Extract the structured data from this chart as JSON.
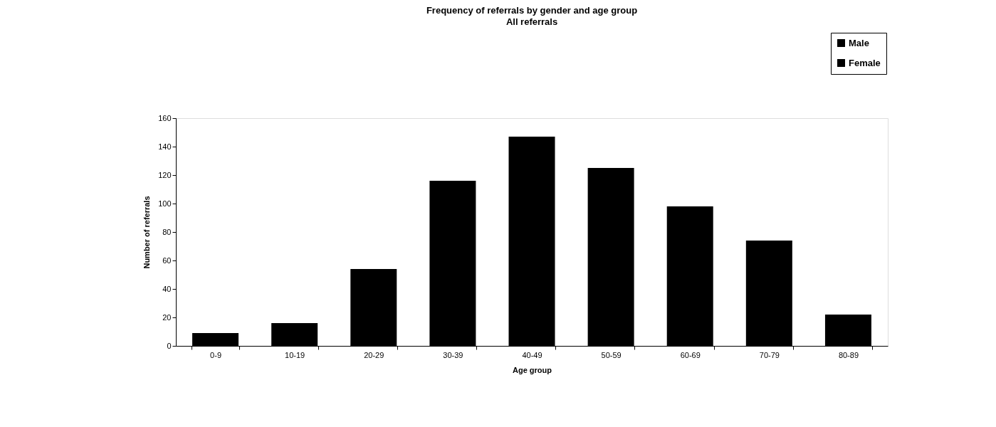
{
  "chart_data": {
    "type": "bar",
    "title": "Frequency of referrals by gender and age group",
    "subtitle": "All referrals",
    "xlabel": "Age group",
    "ylabel": "Number of referrals",
    "categories": [
      "0-9",
      "10-19",
      "20-29",
      "30-39",
      "40-49",
      "50-59",
      "60-69",
      "70-79",
      "80-89"
    ],
    "series": [
      {
        "name": "Male",
        "color": "#000000",
        "values": [
          9,
          16,
          54,
          116,
          147,
          125,
          98,
          74,
          22
        ]
      },
      {
        "name": "Female",
        "color": "#000000",
        "values": [
          null,
          null,
          null,
          null,
          null,
          null,
          null,
          null,
          null
        ]
      }
    ],
    "ylim": [
      0,
      160
    ],
    "yticks": [
      0,
      20,
      40,
      60,
      80,
      100,
      120,
      140,
      160
    ],
    "grid": false,
    "legend": "top right"
  }
}
